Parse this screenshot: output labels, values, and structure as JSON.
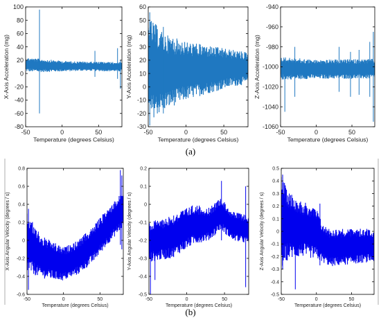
{
  "panel_labels": {
    "a": "(a)",
    "b": "(b)"
  },
  "chart_data": [
    {
      "type": "line",
      "xlabel": "Temperature (degrees Celsius)",
      "ylabel": "X-Axis Acceleration (mg)",
      "xlim": [
        -50,
        82
      ],
      "ylim": [
        -80,
        100
      ],
      "xticks": [
        -50,
        0,
        50
      ],
      "yticks": [
        -80,
        -60,
        -40,
        -20,
        0,
        20,
        40,
        60,
        80,
        100
      ],
      "color": "#1f78c1",
      "band": {
        "x": [
          -50,
          -30,
          0,
          30,
          82
        ],
        "lower": [
          3,
          2,
          3,
          4,
          3
        ],
        "upper": [
          24,
          22,
          19,
          18,
          17
        ]
      },
      "spikes": [
        {
          "x": -31,
          "y": [
            -60,
            96
          ]
        },
        {
          "x": 45,
          "y": [
            -5,
            34
          ]
        },
        {
          "x": 76,
          "y": [
            -8,
            38
          ]
        },
        {
          "x": 80,
          "y": [
            -23,
            20
          ]
        }
      ]
    },
    {
      "type": "line",
      "xlabel": "Temperature (degrees Celsius)",
      "ylabel": "Y-Axis Acceleration (mg)",
      "xlim": [
        -50,
        82
      ],
      "ylim": [
        -30,
        60
      ],
      "xticks": [
        -50,
        0,
        50
      ],
      "yticks": [
        -30,
        -20,
        -10,
        0,
        10,
        20,
        30,
        40,
        50,
        60
      ],
      "color": "#1f78c1",
      "band": {
        "x": [
          -50,
          -40,
          -30,
          0,
          30,
          60,
          82
        ],
        "lower": [
          -26,
          -22,
          -18,
          -10,
          -5,
          0,
          2
        ],
        "upper": [
          52,
          47,
          40,
          34,
          31,
          28,
          26
        ]
      },
      "spikes": [
        {
          "x": -48,
          "y": [
            -29,
            56
          ]
        },
        {
          "x": -30,
          "y": [
            -20,
            45
          ]
        }
      ]
    },
    {
      "type": "line",
      "xlabel": "Temperature (degrees Celsius)",
      "ylabel": "Z-Axis Acceleration (mg)",
      "xlim": [
        -50,
        82
      ],
      "ylim": [
        -1060,
        -940
      ],
      "xticks": [
        -50,
        0,
        50
      ],
      "yticks": [
        -1060,
        -1040,
        -1020,
        -1000,
        -980,
        -960,
        -940
      ],
      "color": "#1f78c1",
      "band": {
        "x": [
          -50,
          0,
          82
        ],
        "lower": [
          -1013,
          -1012,
          -1012
        ],
        "upper": [
          -990,
          -993,
          -992
        ]
      },
      "spikes": [
        {
          "x": -44,
          "y": [
            -1045,
            -1000
          ]
        },
        {
          "x": -30,
          "y": [
            -1030,
            -980
          ]
        },
        {
          "x": 32,
          "y": [
            -1025,
            -980
          ]
        },
        {
          "x": 48,
          "y": [
            -1030,
            -985
          ]
        },
        {
          "x": 60,
          "y": [
            -1028,
            -983
          ]
        },
        {
          "x": 75,
          "y": [
            -1030,
            -975
          ]
        },
        {
          "x": 80,
          "y": [
            -1055,
            -965
          ]
        }
      ]
    },
    {
      "type": "line",
      "xlabel": "Temperature (degrees Celsius)",
      "ylabel": "X-Axis Angular Velocity (degrees / s)",
      "xlim": [
        -50,
        82
      ],
      "ylim": [
        -0.6,
        0.8
      ],
      "xticks": [
        -50,
        0,
        50
      ],
      "yticks": [
        -0.6,
        -0.4,
        -0.2,
        0,
        0.2,
        0.4,
        0.6,
        0.8
      ],
      "color": "#0000ee",
      "band": {
        "x": [
          -50,
          -30,
          0,
          20,
          40,
          60,
          82
        ],
        "lower": [
          -0.35,
          -0.42,
          -0.45,
          -0.38,
          -0.25,
          -0.05,
          0.15
        ],
        "upper": [
          0.3,
          0.05,
          -0.08,
          0.0,
          0.15,
          0.35,
          0.55
        ]
      },
      "spikes": [
        {
          "x": -48,
          "y": [
            -0.55,
            0.35
          ]
        },
        {
          "x": 78,
          "y": [
            -0.05,
            0.78
          ]
        },
        {
          "x": 80,
          "y": [
            -0.1,
            0.72
          ]
        }
      ]
    },
    {
      "type": "line",
      "xlabel": "Temperature (degrees Celsius)",
      "ylabel": "Y-Axis Angular Velocity (degrees / s)",
      "xlim": [
        -50,
        82
      ],
      "ylim": [
        -0.5,
        0.2
      ],
      "xticks": [
        -50,
        0,
        50
      ],
      "yticks": [
        -0.5,
        -0.4,
        -0.3,
        -0.2,
        -0.1,
        0,
        0.1,
        0.2
      ],
      "color": "#0000ee",
      "band": {
        "x": [
          -50,
          -20,
          10,
          30,
          45,
          60,
          82
        ],
        "lower": [
          -0.32,
          -0.3,
          -0.22,
          -0.2,
          -0.14,
          -0.2,
          -0.22
        ],
        "upper": [
          -0.1,
          -0.06,
          0.0,
          -0.02,
          0.04,
          -0.04,
          -0.06
        ]
      },
      "spikes": [
        {
          "x": -48,
          "y": [
            -0.5,
            -0.12
          ]
        },
        {
          "x": -42,
          "y": [
            -0.42,
            -0.1
          ]
        },
        {
          "x": 46,
          "y": [
            -0.2,
            0.13
          ]
        },
        {
          "x": 78,
          "y": [
            -0.46,
            0.1
          ]
        }
      ]
    },
    {
      "type": "line",
      "xlabel": "Temperature (degrees Celsius)",
      "ylabel": "Z-Axis Angular Velocity (degrees / s)",
      "xlim": [
        -50,
        82
      ],
      "ylim": [
        -0.5,
        0.5
      ],
      "xticks": [
        -50,
        0,
        50
      ],
      "yticks": [
        -0.5,
        -0.4,
        -0.3,
        -0.2,
        -0.1,
        0,
        0.1,
        0.2,
        0.3,
        0.4,
        0.5
      ],
      "color": "#0000ee",
      "band": {
        "x": [
          -50,
          -40,
          -20,
          0,
          10,
          20,
          50,
          82
        ],
        "lower": [
          -0.3,
          -0.22,
          -0.2,
          -0.22,
          -0.25,
          -0.28,
          -0.26,
          -0.24
        ],
        "upper": [
          0.44,
          0.32,
          0.24,
          0.18,
          0.05,
          0.02,
          0.02,
          0.02
        ]
      },
      "spikes": [
        {
          "x": -48,
          "y": [
            -0.3,
            0.45
          ]
        },
        {
          "x": -30,
          "y": [
            -0.46,
            0.1
          ]
        },
        {
          "x": 5,
          "y": [
            -0.27,
            0.22
          ]
        }
      ]
    }
  ]
}
